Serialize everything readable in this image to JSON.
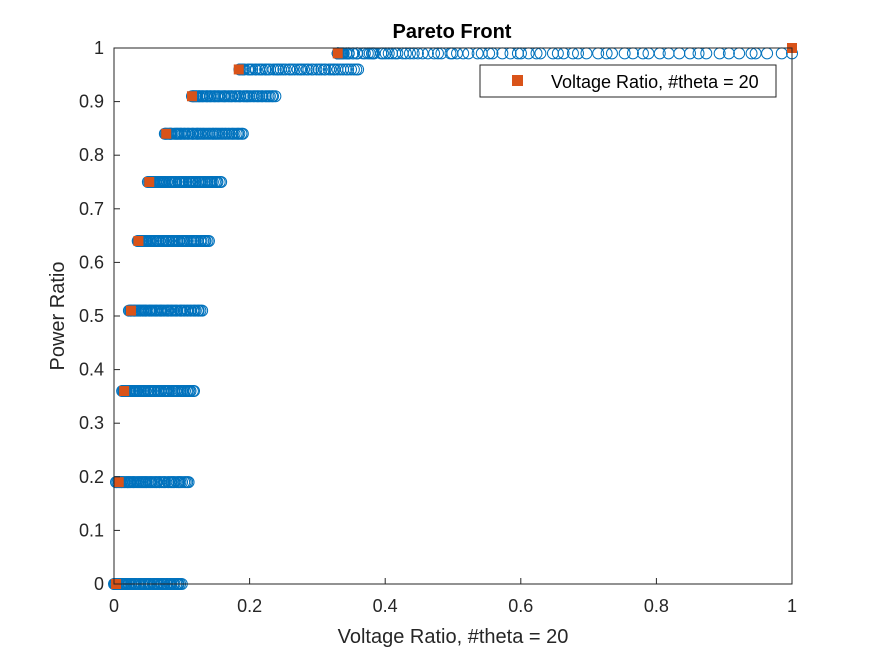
{
  "chart_data": {
    "type": "scatter",
    "title": "Pareto Front",
    "xlabel": "Voltage Ratio, #theta = 20",
    "ylabel": "Power Ratio",
    "xlim": [
      0,
      1
    ],
    "ylim": [
      0,
      1
    ],
    "xticks": [
      "0",
      "0.2",
      "0.4",
      "0.6",
      "0.8",
      "1"
    ],
    "yticks": [
      "0",
      "0.1",
      "0.2",
      "0.3",
      "0.4",
      "0.5",
      "0.6",
      "0.7",
      "0.8",
      "0.9",
      "1"
    ],
    "grid": false,
    "legend_location": "top-right",
    "colors": {
      "all": "#0072BD",
      "pareto": "#D95319",
      "axes": "#262626"
    },
    "series": [
      {
        "marker": "open-circle",
        "color": "#0072BD",
        "levels": [
          {
            "y": 0.0,
            "x_min": 0.0,
            "x_max": 0.1
          },
          {
            "y": 0.19,
            "x_min": 0.003,
            "x_max": 0.11
          },
          {
            "y": 0.36,
            "x_min": 0.012,
            "x_max": 0.118
          },
          {
            "y": 0.51,
            "x_min": 0.022,
            "x_max": 0.13
          },
          {
            "y": 0.64,
            "x_min": 0.035,
            "x_max": 0.14
          },
          {
            "y": 0.75,
            "x_min": 0.05,
            "x_max": 0.158
          },
          {
            "y": 0.84,
            "x_min": 0.075,
            "x_max": 0.19
          },
          {
            "y": 0.91,
            "x_min": 0.115,
            "x_max": 0.238
          },
          {
            "y": 0.96,
            "x_min": 0.185,
            "x_max": 0.36
          },
          {
            "y": 0.99,
            "x_min": 0.33,
            "x_max": 1.0
          }
        ]
      },
      {
        "name": "Voltage Ratio, #theta = 20",
        "marker": "filled-square",
        "color": "#D95319",
        "points": [
          [
            0.003,
            0.0
          ],
          [
            0.007,
            0.19
          ],
          [
            0.015,
            0.36
          ],
          [
            0.025,
            0.51
          ],
          [
            0.036,
            0.64
          ],
          [
            0.052,
            0.75
          ],
          [
            0.077,
            0.84
          ],
          [
            0.115,
            0.91
          ],
          [
            0.184,
            0.96
          ],
          [
            0.33,
            0.99
          ],
          [
            1.0,
            1.0
          ]
        ]
      }
    ]
  }
}
